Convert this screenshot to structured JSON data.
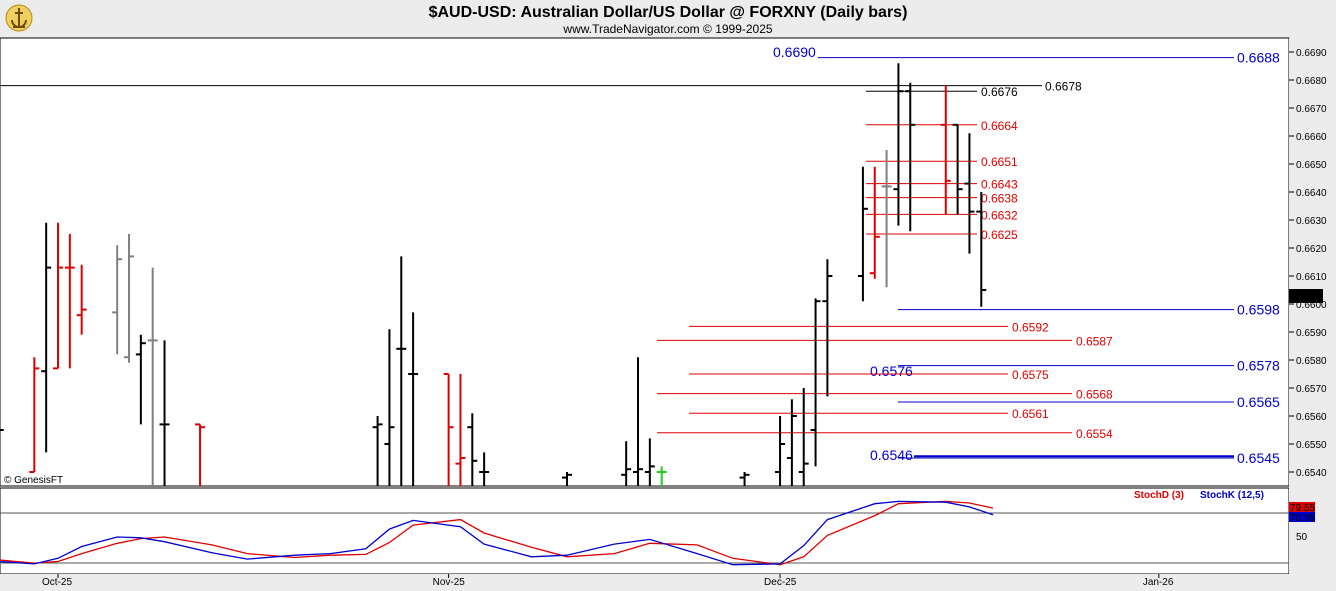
{
  "header": {
    "title": "$AUD-USD:  Australian Dollar/US Dollar @ FORXNY  (Daily bars)",
    "subtitle": "www.TradeNavigator.com © 1999-2025"
  },
  "watermark": "© GenesisFT",
  "chart_data": [
    {
      "type": "ohlc",
      "timeframe": "Daily bars",
      "ylim": [
        0.6535,
        0.6695
      ],
      "y_ticks": [
        "0.6540",
        "0.6550",
        "0.6560",
        "0.6570",
        "0.6580",
        "0.6590",
        "0.6600",
        "0.6610",
        "0.6620",
        "0.6630",
        "0.6640",
        "0.6650",
        "0.6660",
        "0.6670",
        "0.6680",
        "0.6690"
      ],
      "x_tick_labels": [
        {
          "label": "Oct-25",
          "date": "2025-10-01"
        },
        {
          "label": "Nov-25",
          "date": "2025-11-03"
        },
        {
          "label": "Dec-25",
          "date": "2025-12-01"
        },
        {
          "label": "Jan-26",
          "date": "2026-01-02"
        }
      ],
      "last_price": "0.6605",
      "colors": {
        "up": "#000000",
        "down": "#e00000",
        "neutral": "#808080",
        "special": "#22cc22"
      },
      "bars": [
        {
          "date": "2025-09-26",
          "o": 0.654,
          "h": 0.6583,
          "l": 0.654,
          "c": 0.6555,
          "color": "#000000"
        },
        {
          "date": "2025-09-29",
          "o": 0.654,
          "h": 0.6581,
          "l": 0.654,
          "c": 0.6577,
          "color": "#e00000"
        },
        {
          "date": "2025-09-30",
          "o": 0.6576,
          "h": 0.6629,
          "l": 0.6547,
          "c": 0.6613,
          "color": "#000000"
        },
        {
          "date": "2025-10-01",
          "o": 0.6577,
          "h": 0.6629,
          "l": 0.6577,
          "c": 0.6613,
          "color": "#e00000"
        },
        {
          "date": "2025-10-02",
          "o": 0.6613,
          "h": 0.6625,
          "l": 0.6577,
          "c": 0.6613,
          "color": "#e00000"
        },
        {
          "date": "2025-10-03",
          "o": 0.6596,
          "h": 0.6614,
          "l": 0.6589,
          "c": 0.6598,
          "color": "#e00000"
        },
        {
          "date": "2025-10-06",
          "o": 0.6597,
          "h": 0.6621,
          "l": 0.6582,
          "c": 0.6616,
          "color": "#808080"
        },
        {
          "date": "2025-10-07",
          "o": 0.6581,
          "h": 0.6625,
          "l": 0.6579,
          "c": 0.6617,
          "color": "#808080"
        },
        {
          "date": "2025-10-08",
          "o": 0.6582,
          "h": 0.6589,
          "l": 0.6557,
          "c": 0.6586,
          "color": "#000000"
        },
        {
          "date": "2025-10-09",
          "o": 0.6587,
          "h": 0.6613,
          "l": 0.6535,
          "c": 0.6587,
          "color": "#808080"
        },
        {
          "date": "2025-10-10",
          "o": 0.6557,
          "h": 0.6587,
          "l": 0.6535,
          "c": 0.6557,
          "color": "#000000"
        },
        {
          "date": "2025-10-13",
          "o": 0.6557,
          "h": 0.6557,
          "l": 0.6535,
          "c": 0.6556,
          "color": "#e00000"
        },
        {
          "date": "2025-10-28",
          "o": 0.6556,
          "h": 0.656,
          "l": 0.6535,
          "c": 0.6557,
          "color": "#000000"
        },
        {
          "date": "2025-10-29",
          "o": 0.655,
          "h": 0.6591,
          "l": 0.6535,
          "c": 0.6556,
          "color": "#000000"
        },
        {
          "date": "2025-10-30",
          "o": 0.6584,
          "h": 0.6617,
          "l": 0.6535,
          "c": 0.6584,
          "color": "#000000"
        },
        {
          "date": "2025-10-31",
          "o": 0.6575,
          "h": 0.6597,
          "l": 0.6535,
          "c": 0.6575,
          "color": "#000000"
        },
        {
          "date": "2025-11-03",
          "o": 0.6575,
          "h": 0.6575,
          "l": 0.6535,
          "c": 0.6556,
          "color": "#e00000"
        },
        {
          "date": "2025-11-04",
          "o": 0.6543,
          "h": 0.6575,
          "l": 0.6535,
          "c": 0.6545,
          "color": "#e00000"
        },
        {
          "date": "2025-11-05",
          "o": 0.6556,
          "h": 0.6561,
          "l": 0.6535,
          "c": 0.6544,
          "color": "#000000"
        },
        {
          "date": "2025-11-06",
          "o": 0.654,
          "h": 0.6547,
          "l": 0.6535,
          "c": 0.654,
          "color": "#000000"
        },
        {
          "date": "2025-11-13",
          "o": 0.6538,
          "h": 0.654,
          "l": 0.6535,
          "c": 0.6539,
          "color": "#000000"
        },
        {
          "date": "2025-11-18",
          "o": 0.6539,
          "h": 0.6551,
          "l": 0.6535,
          "c": 0.6541,
          "color": "#000000"
        },
        {
          "date": "2025-11-19",
          "o": 0.654,
          "h": 0.6581,
          "l": 0.6535,
          "c": 0.6541,
          "color": "#000000"
        },
        {
          "date": "2025-11-20",
          "o": 0.654,
          "h": 0.6552,
          "l": 0.6535,
          "c": 0.6542,
          "color": "#000000"
        },
        {
          "date": "2025-11-21",
          "o": 0.654,
          "h": 0.6542,
          "l": 0.6535,
          "c": 0.654,
          "color": "#22cc22"
        },
        {
          "date": "2025-11-28",
          "o": 0.6538,
          "h": 0.654,
          "l": 0.6535,
          "c": 0.6539,
          "color": "#000000"
        },
        {
          "date": "2025-12-01",
          "o": 0.654,
          "h": 0.656,
          "l": 0.6535,
          "c": 0.655,
          "color": "#000000"
        },
        {
          "date": "2025-12-02",
          "o": 0.6545,
          "h": 0.6566,
          "l": 0.6535,
          "c": 0.656,
          "color": "#000000"
        },
        {
          "date": "2025-12-03",
          "o": 0.654,
          "h": 0.657,
          "l": 0.6535,
          "c": 0.6543,
          "color": "#000000"
        },
        {
          "date": "2025-12-04",
          "o": 0.6555,
          "h": 0.6602,
          "l": 0.6542,
          "c": 0.6601,
          "color": "#000000"
        },
        {
          "date": "2025-12-05",
          "o": 0.6601,
          "h": 0.6616,
          "l": 0.6567,
          "c": 0.661,
          "color": "#000000"
        },
        {
          "date": "2025-12-08",
          "o": 0.661,
          "h": 0.6649,
          "l": 0.6601,
          "c": 0.6634,
          "color": "#000000"
        },
        {
          "date": "2025-12-09",
          "o": 0.6611,
          "h": 0.6649,
          "l": 0.6609,
          "c": 0.6624,
          "color": "#e00000"
        },
        {
          "date": "2025-12-10",
          "o": 0.6642,
          "h": 0.6655,
          "l": 0.6606,
          "c": 0.6642,
          "color": "#808080"
        },
        {
          "date": "2025-12-11",
          "o": 0.6641,
          "h": 0.6686,
          "l": 0.6628,
          "c": 0.6676,
          "color": "#000000"
        },
        {
          "date": "2025-12-12",
          "o": 0.6676,
          "h": 0.6679,
          "l": 0.6626,
          "c": 0.6664,
          "color": "#000000"
        },
        {
          "date": "2025-12-15",
          "o": 0.6664,
          "h": 0.6678,
          "l": 0.6632,
          "c": 0.6644,
          "color": "#e00000"
        },
        {
          "date": "2025-12-16",
          "o": 0.6664,
          "h": 0.6664,
          "l": 0.6632,
          "c": 0.6641,
          "color": "#000000"
        },
        {
          "date": "2025-12-17",
          "o": 0.6643,
          "h": 0.6661,
          "l": 0.6618,
          "c": 0.6633,
          "color": "#000000"
        },
        {
          "date": "2025-12-18",
          "o": 0.6633,
          "h": 0.664,
          "l": 0.6599,
          "c": 0.6605,
          "color": "#000000"
        }
      ],
      "levels": [
        {
          "value": 0.669,
          "label": "0.6690",
          "color": "#0000cc",
          "side": "left"
        },
        {
          "value": 0.6688,
          "label": "0.6688",
          "color": "#0000cc",
          "side": "right"
        },
        {
          "value": 0.6678,
          "label": "0.6678",
          "color": "#000000",
          "side": "right"
        },
        {
          "value": 0.6676,
          "label": "0.6676",
          "color": "#000000",
          "side": "right"
        },
        {
          "value": 0.6664,
          "label": "0.6664",
          "color": "#e00000",
          "side": "right"
        },
        {
          "value": 0.6651,
          "label": "0.6651",
          "color": "#e00000",
          "side": "right"
        },
        {
          "value": 0.6643,
          "label": "0.6643",
          "color": "#e00000",
          "side": "right"
        },
        {
          "value": 0.6638,
          "label": "0.6638",
          "color": "#e00000",
          "side": "right"
        },
        {
          "value": 0.6632,
          "label": "0.6632",
          "color": "#e00000",
          "side": "right"
        },
        {
          "value": 0.6625,
          "label": "0.6625",
          "color": "#e00000",
          "side": "right"
        },
        {
          "value": 0.6598,
          "label": "0.6598",
          "color": "#0000cc",
          "side": "right"
        },
        {
          "value": 0.6592,
          "label": "0.6592",
          "color": "#e00000",
          "side": "right"
        },
        {
          "value": 0.6587,
          "label": "0.6587",
          "color": "#e00000",
          "side": "right"
        },
        {
          "value": 0.6578,
          "label": "0.6578",
          "color": "#0000cc",
          "side": "right"
        },
        {
          "value": 0.6576,
          "label": "0.6576",
          "color": "#0000cc",
          "side": "left"
        },
        {
          "value": 0.6575,
          "label": "0.6575",
          "color": "#e00000",
          "side": "right"
        },
        {
          "value": 0.6568,
          "label": "0.6568",
          "color": "#e00000",
          "side": "right"
        },
        {
          "value": 0.6565,
          "label": "0.6565",
          "color": "#0000cc",
          "side": "right"
        },
        {
          "value": 0.6561,
          "label": "0.6561",
          "color": "#e00000",
          "side": "right"
        },
        {
          "value": 0.6554,
          "label": "0.6554",
          "color": "#e00000",
          "side": "right"
        },
        {
          "value": 0.6546,
          "label": "0.6546",
          "color": "#0000cc",
          "side": "left"
        },
        {
          "value": 0.6545,
          "label": "0.6545",
          "color": "#0000cc",
          "side": "right"
        }
      ]
    },
    {
      "type": "line",
      "indicator": "Stochastic",
      "ylim": [
        0,
        100
      ],
      "y_tick_labels": [
        "50"
      ],
      "legend": [
        {
          "name": "StochD (3)",
          "color": "#e00000"
        },
        {
          "name": "StochK (12,5)",
          "color": "#0000cc"
        }
      ],
      "last_values": {
        "StochD (3)": "79.55",
        "StochK (12,5)": "70.99"
      },
      "series": [
        {
          "name": "StochD (3)",
          "color": "#e00000",
          "points": [
            [
              "2025-09-26",
              14
            ],
            [
              "2025-09-29",
              10
            ],
            [
              "2025-10-01",
              12
            ],
            [
              "2025-10-03",
              22
            ],
            [
              "2025-10-06",
              35
            ],
            [
              "2025-10-08",
              41
            ],
            [
              "2025-10-10",
              43
            ],
            [
              "2025-10-14",
              33
            ],
            [
              "2025-10-17",
              22
            ],
            [
              "2025-10-21",
              17
            ],
            [
              "2025-10-24",
              20
            ],
            [
              "2025-10-27",
              21
            ],
            [
              "2025-10-29",
              36
            ],
            [
              "2025-10-31",
              58
            ],
            [
              "2025-11-04",
              65
            ],
            [
              "2025-11-06",
              48
            ],
            [
              "2025-11-10",
              30
            ],
            [
              "2025-11-13",
              18
            ],
            [
              "2025-11-17",
              22
            ],
            [
              "2025-11-20",
              35
            ],
            [
              "2025-11-24",
              33
            ],
            [
              "2025-11-27",
              16
            ],
            [
              "2025-12-01",
              8
            ],
            [
              "2025-12-03",
              18
            ],
            [
              "2025-12-05",
              45
            ],
            [
              "2025-12-09",
              70
            ],
            [
              "2025-12-11",
              85
            ],
            [
              "2025-12-15",
              88
            ],
            [
              "2025-12-17",
              86
            ],
            [
              "2025-12-19",
              79.55
            ]
          ]
        },
        {
          "name": "StochK (12,5)",
          "color": "#0000cc",
          "points": [
            [
              "2025-09-26",
              12
            ],
            [
              "2025-09-29",
              9
            ],
            [
              "2025-10-01",
              16
            ],
            [
              "2025-10-03",
              31
            ],
            [
              "2025-10-06",
              43
            ],
            [
              "2025-10-08",
              42
            ],
            [
              "2025-10-10",
              37
            ],
            [
              "2025-10-14",
              23
            ],
            [
              "2025-10-17",
              15
            ],
            [
              "2025-10-21",
              20
            ],
            [
              "2025-10-24",
              22
            ],
            [
              "2025-10-27",
              28
            ],
            [
              "2025-10-29",
              53
            ],
            [
              "2025-10-31",
              64
            ],
            [
              "2025-11-04",
              56
            ],
            [
              "2025-11-06",
              34
            ],
            [
              "2025-11-10",
              18
            ],
            [
              "2025-11-13",
              20
            ],
            [
              "2025-11-17",
              34
            ],
            [
              "2025-11-20",
              40
            ],
            [
              "2025-11-24",
              22
            ],
            [
              "2025-11-27",
              8
            ],
            [
              "2025-12-01",
              9
            ],
            [
              "2025-12-03",
              32
            ],
            [
              "2025-12-05",
              65
            ],
            [
              "2025-12-09",
              85
            ],
            [
              "2025-12-11",
              88
            ],
            [
              "2025-12-15",
              87
            ],
            [
              "2025-12-17",
              81
            ],
            [
              "2025-12-19",
              70.99
            ]
          ]
        }
      ]
    }
  ]
}
